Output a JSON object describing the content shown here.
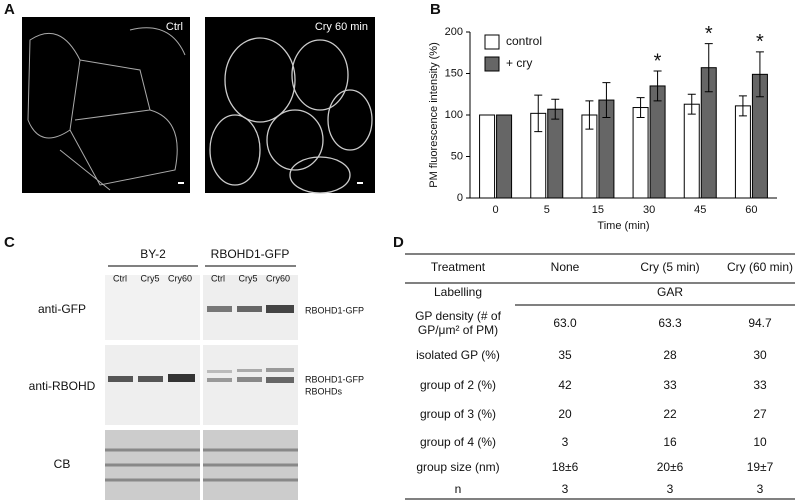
{
  "panels": {
    "a": "A",
    "b": "B",
    "c": "C",
    "d": "D"
  },
  "images": {
    "left_label": "Ctrl",
    "right_label": "Cry 60 min"
  },
  "chart_data": {
    "type": "bar",
    "ylabel": "PM fluorescence intensity (%)",
    "xlabel": "Time (min)",
    "categories": [
      "0",
      "5",
      "15",
      "30",
      "45",
      "60"
    ],
    "series": [
      {
        "name": "control",
        "color": "#ffffff",
        "values": [
          100,
          102,
          100,
          109,
          113,
          111
        ],
        "errors": [
          0,
          22,
          17,
          12,
          12,
          12
        ]
      },
      {
        "name": "+ cry",
        "color": "#666666",
        "values": [
          100,
          107,
          118,
          135,
          157,
          149
        ],
        "errors": [
          0,
          12,
          21,
          18,
          29,
          27
        ],
        "annotations": [
          null,
          null,
          null,
          "*",
          "*",
          "*"
        ]
      }
    ],
    "ylim": [
      0,
      200
    ],
    "yticks": [
      0,
      50,
      100,
      150,
      200
    ],
    "legend": "upper left",
    "grid": false
  },
  "blot": {
    "groups": [
      "BY-2",
      "RBOHD1-GFP"
    ],
    "lanes": [
      "Ctrl",
      "Cry5",
      "Cry60",
      "Ctrl",
      "Cry5",
      "Cry60"
    ],
    "rows": [
      "anti-GFP",
      "anti-RBOHD",
      "CB"
    ],
    "band_labels": [
      "RBOHD1-GFP",
      "RBOHD1-GFP",
      "RBOHDs"
    ]
  },
  "table": {
    "header": [
      "Treatment",
      "None",
      "Cry (5 min)",
      "Cry (60 min)"
    ],
    "labelling": [
      "Labelling",
      "GAR"
    ],
    "rows": [
      [
        [
          "GP density (# of",
          "GP/μm² of PM)"
        ],
        "63.0",
        "63.3",
        "94.7"
      ],
      [
        "isolated GP (%)",
        "35",
        "28",
        "30"
      ],
      [
        "group of 2 (%)",
        "42",
        "33",
        "33"
      ],
      [
        "group of 3 (%)",
        "20",
        "22",
        "27"
      ],
      [
        "group of 4 (%)",
        "3",
        "16",
        "10"
      ],
      [
        "group size (nm)",
        "18±6",
        "20±6",
        "19±7"
      ],
      [
        "n",
        "3",
        "3",
        "3"
      ]
    ]
  }
}
